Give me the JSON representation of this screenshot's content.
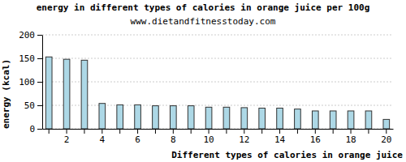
{
  "chart_data": {
    "type": "bar",
    "title": "energy in different types of calories in orange juice per 100g",
    "subtitle": "www.dietandfitnesstoday.com",
    "x_label": "Different types of calories in orange juice",
    "y_label": "energy (kcal)",
    "categories": [
      null,
      "2",
      null,
      "4",
      null,
      "6",
      null,
      "8",
      null,
      "10",
      null,
      "12",
      null,
      "14",
      null,
      "16",
      null,
      "18",
      null,
      "20"
    ],
    "values": [
      153,
      148,
      146,
      54,
      51,
      51,
      49,
      49,
      49,
      46,
      46,
      45,
      44,
      44,
      42,
      38,
      38,
      38,
      38,
      20
    ],
    "color": "#add8e6",
    "ylim": [
      0,
      200
    ],
    "yticks": [
      0,
      50,
      100,
      150,
      200
    ],
    "grid": true
  }
}
